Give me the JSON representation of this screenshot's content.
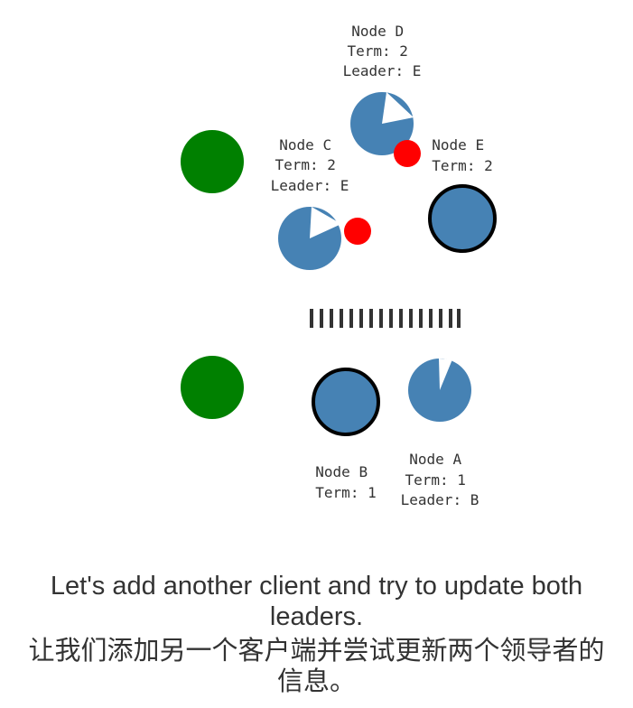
{
  "colors": {
    "node": "#4682b4",
    "client": "#008000",
    "message": "#ff0000",
    "leader_outline": "#000000",
    "partition": "#333333",
    "text": "#333333"
  },
  "nodes": {
    "A": {
      "name": "Node A",
      "term": "Term: 1",
      "leader": "Leader: B"
    },
    "B": {
      "name": "Node B",
      "term": "Term: 1"
    },
    "C": {
      "name": "Node C",
      "term": "Term: 2",
      "leader": "Leader: E"
    },
    "D": {
      "name": "Node D",
      "term": "Term: 2",
      "leader": "Leader: E"
    },
    "E": {
      "name": "Node E",
      "term": "Term: 2"
    }
  },
  "caption": {
    "en": "Let's add another client and try to update both leaders.",
    "zh": "让我们添加另一个客户端并尝试更新两个领导者的信息。"
  }
}
